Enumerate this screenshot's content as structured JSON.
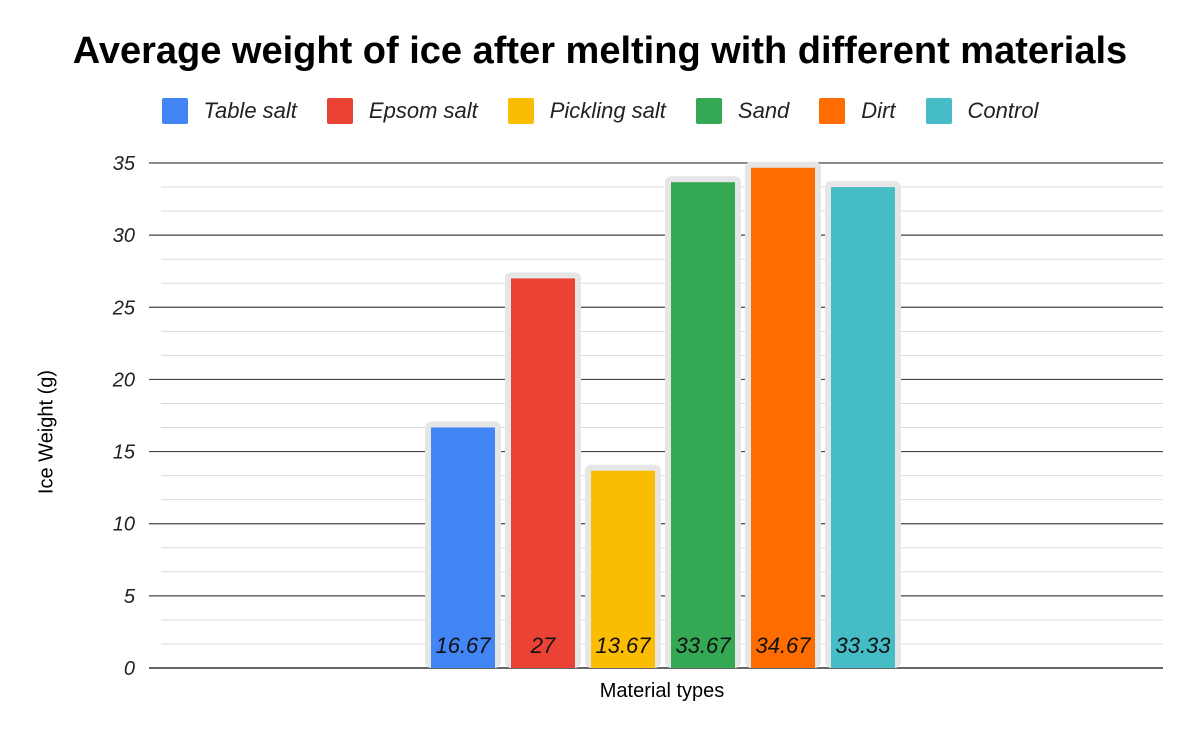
{
  "chart_data": {
    "type": "bar",
    "title": "Average weight of ice after melting with different materials",
    "xlabel": "Material types",
    "ylabel": "Ice Weight (g)",
    "ylim": [
      0,
      35
    ],
    "yticks": [
      0,
      5,
      10,
      15,
      20,
      25,
      30,
      35
    ],
    "grid": true,
    "legend_position": "top",
    "series": [
      {
        "name": "Table salt",
        "value": 16.67,
        "label": "16.67",
        "color": "#4285f4"
      },
      {
        "name": "Epsom salt",
        "value": 27,
        "label": "27",
        "color": "#ea4335"
      },
      {
        "name": "Pickling salt",
        "value": 13.67,
        "label": "13.67",
        "color": "#fbbc04"
      },
      {
        "name": "Sand",
        "value": 33.67,
        "label": "33.67",
        "color": "#34a853"
      },
      {
        "name": "Dirt",
        "value": 34.67,
        "label": "34.67",
        "color": "#ff6d01"
      },
      {
        "name": "Control",
        "value": 33.33,
        "label": "33.33",
        "color": "#46bdc6"
      }
    ]
  }
}
